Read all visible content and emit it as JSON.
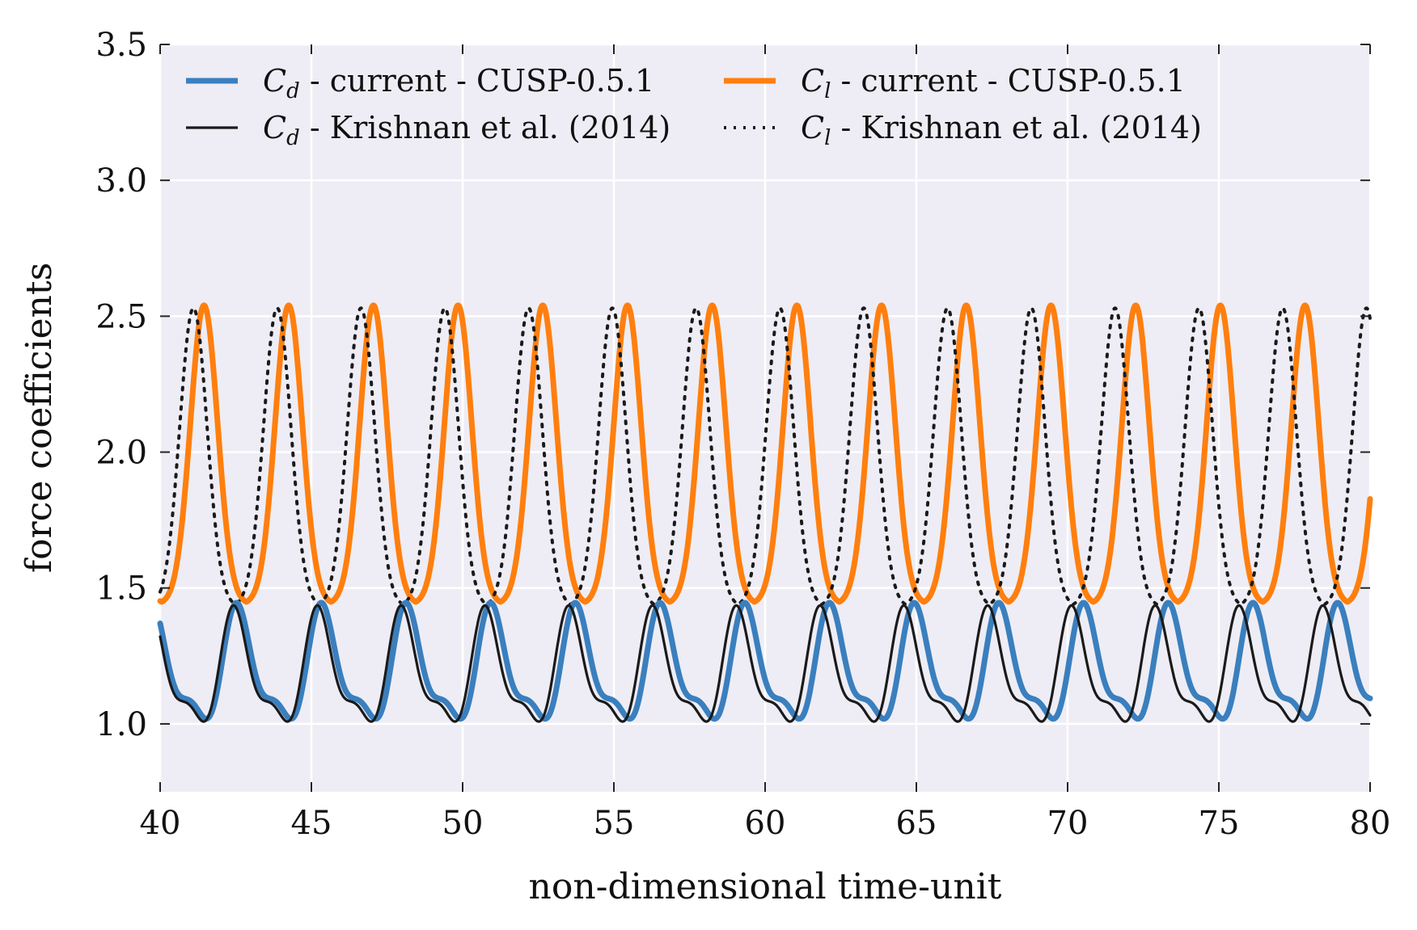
{
  "chart_data": {
    "type": "line",
    "xlabel": "non-dimensional time-unit",
    "ylabel": "force coefficients",
    "xlim": [
      40,
      80
    ],
    "ylim": [
      0.75,
      3.5
    ],
    "xticks": [
      "40",
      "45",
      "50",
      "55",
      "60",
      "65",
      "70",
      "75",
      "80"
    ],
    "yticks": [
      "1.0",
      "1.5",
      "2.0",
      "2.5",
      "3.0",
      "3.5"
    ],
    "grid": true,
    "legend_position": "top",
    "legend_columns": 2,
    "background_color": "#eeedf5",
    "series": [
      {
        "name": "C_d - current - CUSP-0.5.1",
        "legend_symbol": "C",
        "legend_subscript": "d",
        "legend_suffix": " - current - CUSP-0.5.1",
        "color": "#3a7fbe",
        "style": "solid-thick",
        "model": {
          "period": 2.8,
          "phase": 42.6,
          "mean": 1.19,
          "amp1": 0.19,
          "amp2": 0.07,
          "shift2": 0.55
        }
      },
      {
        "name": "C_d - Krishnan et al. (2014)",
        "legend_symbol": "C",
        "legend_subscript": "d",
        "legend_suffix": " - Krishnan et al. (2014)",
        "color": "#1a1a1a",
        "style": "solid-thin",
        "model": {
          "period": 2.77,
          "phase": 42.5,
          "mean": 1.18,
          "amp1": 0.19,
          "amp2": 0.07,
          "shift2": 0.55
        }
      },
      {
        "name": "C_l - current - CUSP-0.5.1",
        "legend_symbol": "C",
        "legend_subscript": "l",
        "legend_suffix": " - current - CUSP-0.5.1",
        "color": "#ff7f0e",
        "style": "solid-thick",
        "model": {
          "period": 2.8,
          "peak": 41.45,
          "min": 1.44,
          "max": 2.54,
          "width": 0.45
        }
      },
      {
        "name": "C_l - Krishnan et al. (2014)",
        "legend_symbol": "C",
        "legend_subscript": "l",
        "legend_suffix": " - Krishnan et al. (2014)",
        "color": "#1a1a1a",
        "style": "dotted",
        "model": {
          "period": 2.77,
          "peak": 41.1,
          "min": 1.43,
          "max": 2.53,
          "width": 0.45
        }
      }
    ]
  }
}
